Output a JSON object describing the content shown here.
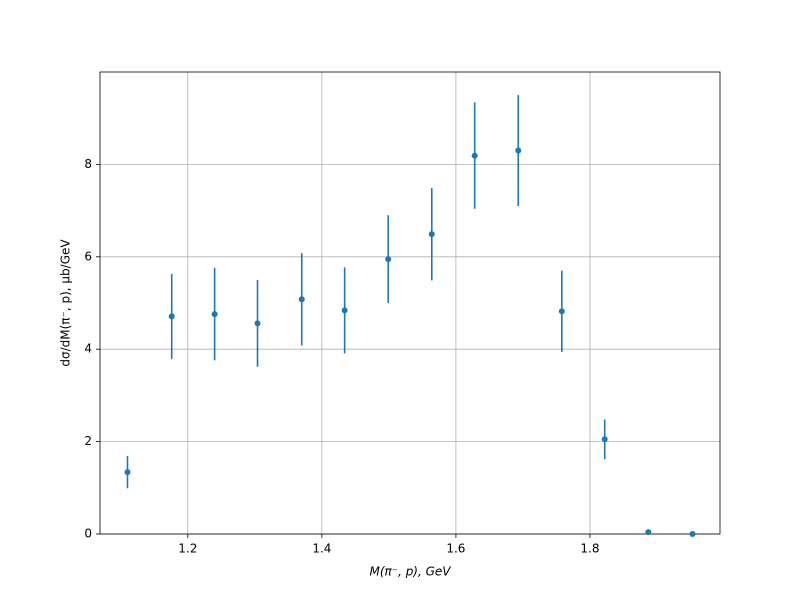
{
  "chart_data": {
    "type": "errorbar",
    "xlabel": "M(π⁻, p), GeV",
    "ylabel": "dσ/dM(π⁻, p), μb/GeV",
    "x": [
      1.11,
      1.176,
      1.24,
      1.304,
      1.37,
      1.434,
      1.499,
      1.564,
      1.628,
      1.693,
      1.758,
      1.822,
      1.887,
      1.953
    ],
    "y": [
      1.34,
      4.71,
      4.76,
      4.56,
      5.08,
      4.84,
      5.95,
      6.49,
      8.19,
      8.3,
      4.82,
      2.05,
      0.04,
      0
    ],
    "yerr": [
      0.35,
      0.92,
      1.0,
      0.94,
      1.0,
      0.93,
      0.95,
      1.0,
      1.15,
      1.2,
      0.88,
      0.43,
      0,
      0
    ],
    "color": "#1f77b4",
    "xlim": [
      1.069,
      1.994
    ],
    "xticks": [
      1.2,
      1.4,
      1.6,
      1.8
    ],
    "ylim": [
      0,
      10
    ],
    "yticks": [
      0,
      2,
      4,
      6,
      8
    ],
    "grid": true
  }
}
